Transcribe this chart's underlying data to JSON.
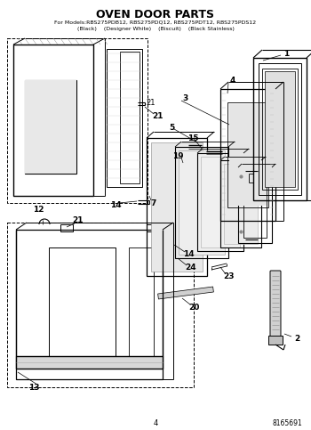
{
  "title": "OVEN DOOR PARTS",
  "subtitle_line1": "For Models:RBS275PDB12, RBS275PDQ12, RBS275PDT12, RBS275PDS12",
  "subtitle_line2": "(Black)    (Designer White)    (Biscuit)    (Black Stainless)",
  "page_number": "4",
  "doc_number": "8165691",
  "bg_color": "#ffffff",
  "lc": "#000000",
  "gray1": "#888888",
  "gray2": "#cccccc",
  "gray3": "#e8e8e8",
  "gray4": "#aaaaaa"
}
